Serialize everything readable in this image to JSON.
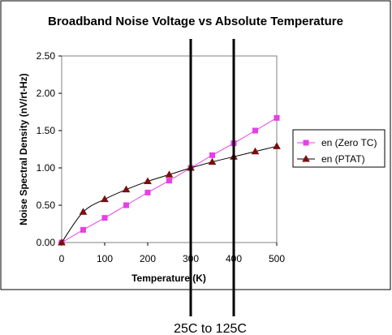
{
  "chart_data": {
    "type": "line",
    "title": "Broadband Noise Voltage vs Absolute Temperature",
    "xlabel": "Temperature (K)",
    "ylabel": "Noise Spectral Density (nV/rt-Hz)",
    "xlim": [
      0,
      500
    ],
    "ylim": [
      0,
      2.5
    ],
    "x_ticks": [
      0,
      100,
      200,
      300,
      400,
      500
    ],
    "y_ticks": [
      "0.00",
      "0.50",
      "1.00",
      "1.50",
      "2.00",
      "2.50"
    ],
    "grid": false,
    "legend_position": "right",
    "series": [
      {
        "name": "en (Zero TC)",
        "color": "#e83ee8",
        "marker": "square",
        "points": [
          [
            0,
            0.0
          ],
          [
            50,
            0.17
          ],
          [
            100,
            0.33
          ],
          [
            150,
            0.5
          ],
          [
            200,
            0.67
          ],
          [
            250,
            0.83
          ],
          [
            300,
            1.0
          ],
          [
            350,
            1.17
          ],
          [
            400,
            1.33
          ],
          [
            450,
            1.5
          ],
          [
            500,
            1.67
          ]
        ]
      },
      {
        "name": "en (PTAT)",
        "color": "#7b0f0f",
        "marker": "triangle",
        "points": [
          [
            0,
            0.0
          ],
          [
            50,
            0.41
          ],
          [
            100,
            0.58
          ],
          [
            150,
            0.71
          ],
          [
            200,
            0.82
          ],
          [
            250,
            0.91
          ],
          [
            300,
            1.0
          ],
          [
            350,
            1.08
          ],
          [
            400,
            1.15
          ],
          [
            450,
            1.22
          ],
          [
            500,
            1.29
          ]
        ]
      }
    ],
    "vertical_markers": [
      300,
      400
    ],
    "annotation": "25C to 125C"
  }
}
